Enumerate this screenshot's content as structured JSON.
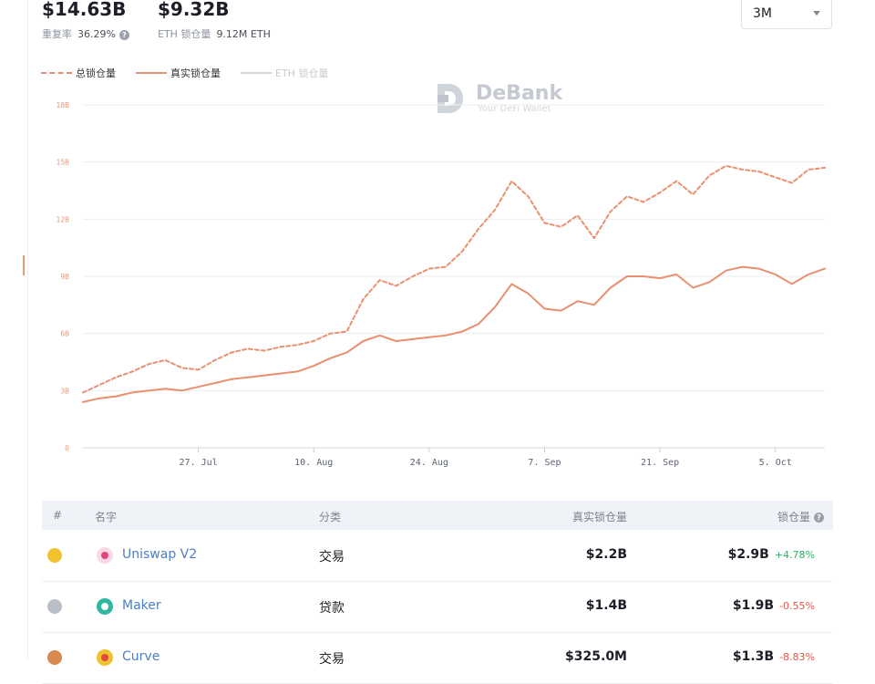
{
  "stats": {
    "total_value": "$14.63B",
    "repeat_rate_label": "重复率",
    "repeat_rate": "36.29%",
    "eth_value": "$9.32B",
    "eth_locked_label": "ETH 锁仓量",
    "eth_locked": "9.12M ETH"
  },
  "range_select": {
    "value": "3M"
  },
  "legend": {
    "total": "总锁仓量",
    "real": "真实锁仓量",
    "eth": "ETH 锁仓量"
  },
  "watermark": {
    "name": "DeBank",
    "tagline": "Your DeFi Wallet"
  },
  "colors": {
    "accent": "#e8906f",
    "grid": "#eceef2",
    "link": "#4c7fc4",
    "up": "#2eaf6a",
    "down": "#e2574c"
  },
  "chart_data": {
    "type": "line",
    "y_ticks": [
      "0",
      "3B",
      "6B",
      "9B",
      "12B",
      "15B",
      "18B"
    ],
    "ylim": [
      0,
      18
    ],
    "x_ticks": [
      "27. Jul",
      "10. Aug",
      "24. Aug",
      "7. Sep",
      "21. Sep",
      "5. Oct"
    ],
    "x_tick_days": [
      14,
      28,
      42,
      56,
      70,
      84
    ],
    "xlim": [
      0,
      90
    ],
    "series": [
      {
        "name": "总锁仓量",
        "style": "dashed",
        "points": [
          [
            0,
            2.9
          ],
          [
            2,
            3.3
          ],
          [
            4,
            3.7
          ],
          [
            6,
            4.0
          ],
          [
            8,
            4.4
          ],
          [
            10,
            4.6
          ],
          [
            12,
            4.2
          ],
          [
            14,
            4.1
          ],
          [
            16,
            4.6
          ],
          [
            18,
            5.0
          ],
          [
            20,
            5.2
          ],
          [
            22,
            5.1
          ],
          [
            24,
            5.3
          ],
          [
            26,
            5.4
          ],
          [
            28,
            5.6
          ],
          [
            30,
            6.0
          ],
          [
            32,
            6.1
          ],
          [
            34,
            7.8
          ],
          [
            36,
            8.8
          ],
          [
            38,
            8.5
          ],
          [
            40,
            9.0
          ],
          [
            42,
            9.4
          ],
          [
            44,
            9.5
          ],
          [
            46,
            10.3
          ],
          [
            48,
            11.5
          ],
          [
            50,
            12.5
          ],
          [
            52,
            14.0
          ],
          [
            54,
            13.2
          ],
          [
            56,
            11.8
          ],
          [
            58,
            11.6
          ],
          [
            60,
            12.2
          ],
          [
            62,
            11.0
          ],
          [
            64,
            12.4
          ],
          [
            66,
            13.2
          ],
          [
            68,
            12.9
          ],
          [
            70,
            13.4
          ],
          [
            72,
            14.0
          ],
          [
            74,
            13.3
          ],
          [
            76,
            14.3
          ],
          [
            78,
            14.8
          ],
          [
            80,
            14.6
          ],
          [
            82,
            14.5
          ],
          [
            84,
            14.2
          ],
          [
            86,
            13.9
          ],
          [
            88,
            14.6
          ],
          [
            90,
            14.7
          ]
        ]
      },
      {
        "name": "真实锁仓量",
        "style": "solid",
        "points": [
          [
            0,
            2.4
          ],
          [
            2,
            2.6
          ],
          [
            4,
            2.7
          ],
          [
            6,
            2.9
          ],
          [
            8,
            3.0
          ],
          [
            10,
            3.1
          ],
          [
            12,
            3.0
          ],
          [
            14,
            3.2
          ],
          [
            16,
            3.4
          ],
          [
            18,
            3.6
          ],
          [
            20,
            3.7
          ],
          [
            22,
            3.8
          ],
          [
            24,
            3.9
          ],
          [
            26,
            4.0
          ],
          [
            28,
            4.3
          ],
          [
            30,
            4.7
          ],
          [
            32,
            5.0
          ],
          [
            34,
            5.6
          ],
          [
            36,
            5.9
          ],
          [
            38,
            5.6
          ],
          [
            40,
            5.7
          ],
          [
            42,
            5.8
          ],
          [
            44,
            5.9
          ],
          [
            46,
            6.1
          ],
          [
            48,
            6.5
          ],
          [
            50,
            7.4
          ],
          [
            52,
            8.6
          ],
          [
            54,
            8.1
          ],
          [
            56,
            7.3
          ],
          [
            58,
            7.2
          ],
          [
            60,
            7.7
          ],
          [
            62,
            7.5
          ],
          [
            64,
            8.4
          ],
          [
            66,
            9.0
          ],
          [
            68,
            9.0
          ],
          [
            70,
            8.9
          ],
          [
            72,
            9.1
          ],
          [
            74,
            8.4
          ],
          [
            76,
            8.7
          ],
          [
            78,
            9.3
          ],
          [
            80,
            9.5
          ],
          [
            82,
            9.4
          ],
          [
            84,
            9.1
          ],
          [
            86,
            8.6
          ],
          [
            88,
            9.1
          ],
          [
            90,
            9.4
          ]
        ]
      }
    ]
  },
  "table": {
    "headers": {
      "rank": "#",
      "name": "名字",
      "category": "分类",
      "real_locked": "真实锁仓量",
      "locked": "锁仓量"
    },
    "rows": [
      {
        "rank": "1",
        "name": "Uniswap V2",
        "category": "交易",
        "real_locked": "$2.2B",
        "locked": "$2.9B",
        "change": "+4.78%",
        "trend": "up",
        "medal_color": "#f3c230",
        "icon_color": "#fbd9e6",
        "icon_mark": "#e0457f"
      },
      {
        "rank": "2",
        "name": "Maker",
        "category": "贷款",
        "real_locked": "$1.4B",
        "locked": "$1.9B",
        "change": "-0.55%",
        "trend": "down",
        "medal_color": "#b9bec7",
        "icon_color": "#2fb7a0",
        "icon_mark": "#ffffff"
      },
      {
        "rank": "3",
        "name": "Curve",
        "category": "交易",
        "real_locked": "$325.0M",
        "locked": "$1.3B",
        "change": "-8.83%",
        "trend": "down",
        "medal_color": "#d88a4e",
        "icon_color": "#f0c22f",
        "icon_mark": "#e4473c"
      }
    ]
  }
}
